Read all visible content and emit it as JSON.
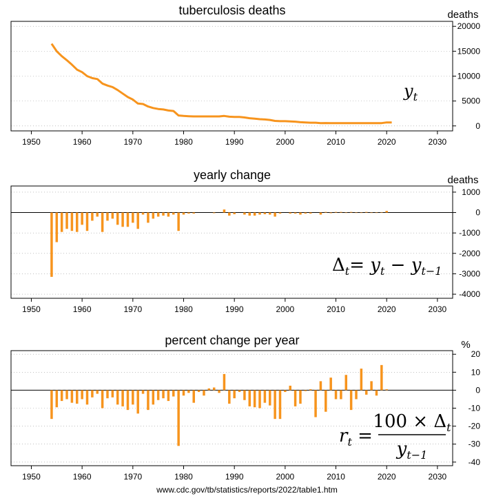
{
  "colors": {
    "series": "#F7941D",
    "frame": "#000000",
    "grid": "#999999"
  },
  "source": "www.cdc.gov/tb/statistics/reports/2022/table1.htm",
  "chart_data": [
    {
      "type": "line",
      "title": "tuberculosis deaths",
      "unit": "deaths",
      "formula": "y_t",
      "xlim": [
        1946,
        2033
      ],
      "ylim": [
        -1000,
        21000
      ],
      "xticks": [
        1950,
        1960,
        1970,
        1980,
        1990,
        2000,
        2010,
        2020,
        2030
      ],
      "yticks": [
        0,
        5000,
        10000,
        15000,
        20000
      ],
      "grid": true,
      "x": [
        1954,
        1955,
        1956,
        1957,
        1958,
        1959,
        1960,
        1961,
        1962,
        1963,
        1964,
        1965,
        1966,
        1967,
        1968,
        1969,
        1970,
        1971,
        1972,
        1973,
        1974,
        1975,
        1976,
        1977,
        1978,
        1979,
        1980,
        1981,
        1982,
        1983,
        1984,
        1985,
        1986,
        1987,
        1988,
        1989,
        1990,
        1991,
        1992,
        1993,
        1994,
        1995,
        1996,
        1997,
        1998,
        1999,
        2000,
        2001,
        2002,
        2003,
        2004,
        2005,
        2006,
        2007,
        2008,
        2009,
        2010,
        2011,
        2012,
        2013,
        2014,
        2015,
        2016,
        2017,
        2018,
        2019,
        2020,
        2021
      ],
      "values": [
        16500,
        15000,
        14000,
        13200,
        12300,
        11300,
        10800,
        10000,
        9600,
        9400,
        8500,
        8100,
        7800,
        7200,
        6500,
        5800,
        5300,
        4500,
        4400,
        3900,
        3600,
        3400,
        3300,
        3100,
        3000,
        2100,
        2000,
        1950,
        1900,
        1900,
        1900,
        1900,
        1900,
        1900,
        2000,
        1850,
        1800,
        1800,
        1700,
        1550,
        1450,
        1350,
        1300,
        1200,
        1000,
        950,
        950,
        900,
        850,
        750,
        700,
        650,
        650,
        550,
        580,
        550,
        550,
        550,
        550,
        550,
        550,
        550,
        550,
        550,
        550,
        570,
        700,
        700
      ]
    },
    {
      "type": "bar",
      "title": "yearly change",
      "unit": "deaths",
      "formula": "Δ_t = y_t − y_{t−1}",
      "xlim": [
        1946,
        2033
      ],
      "ylim": [
        -4200,
        1300
      ],
      "xticks": [
        1950,
        1960,
        1970,
        1980,
        1990,
        2000,
        2010,
        2020,
        2030
      ],
      "yticks": [
        1000,
        0,
        -1000,
        -2000,
        -3000,
        -4000
      ],
      "grid": true,
      "x": [
        1954,
        1955,
        1956,
        1957,
        1958,
        1959,
        1960,
        1961,
        1962,
        1963,
        1964,
        1965,
        1966,
        1967,
        1968,
        1969,
        1970,
        1971,
        1972,
        1973,
        1974,
        1975,
        1976,
        1977,
        1978,
        1979,
        1980,
        1981,
        1982,
        1983,
        1984,
        1985,
        1986,
        1987,
        1988,
        1989,
        1990,
        1991,
        1992,
        1993,
        1994,
        1995,
        1996,
        1997,
        1998,
        1999,
        2000,
        2001,
        2002,
        2003,
        2004,
        2005,
        2006,
        2007,
        2008,
        2009,
        2010,
        2011,
        2012,
        2013,
        2014,
        2015,
        2016,
        2017,
        2018,
        2019,
        2020,
        2021
      ],
      "values": [
        -3150,
        -1450,
        -950,
        -800,
        -900,
        -950,
        -600,
        -900,
        -400,
        -200,
        -950,
        -400,
        -300,
        -600,
        -700,
        -700,
        -500,
        -800,
        -100,
        -500,
        -300,
        -200,
        -150,
        -200,
        -100,
        -900,
        -100,
        -50,
        -50,
        0,
        0,
        0,
        -30,
        0,
        150,
        -150,
        -80,
        0,
        -100,
        -150,
        -150,
        -100,
        -80,
        -100,
        -200,
        -50,
        0,
        -50,
        -50,
        -100,
        -50,
        -50,
        0,
        -100,
        30,
        -30,
        30,
        30,
        -20,
        30,
        -20,
        -20,
        30,
        -20,
        -20,
        20,
        80,
        0
      ]
    },
    {
      "type": "bar",
      "title": "percent change per year",
      "unit": "%",
      "formula": "r_t = 100 × Δ_t / y_{t−1}",
      "xlim": [
        1946,
        2033
      ],
      "ylim": [
        -42,
        22
      ],
      "xticks": [
        1950,
        1960,
        1970,
        1980,
        1990,
        2000,
        2010,
        2020,
        2030
      ],
      "yticks": [
        20,
        10,
        0,
        -10,
        -20,
        -30,
        -40
      ],
      "grid": true,
      "x": [
        1954,
        1955,
        1956,
        1957,
        1958,
        1959,
        1960,
        1961,
        1962,
        1963,
        1964,
        1965,
        1966,
        1967,
        1968,
        1969,
        1970,
        1971,
        1972,
        1973,
        1974,
        1975,
        1976,
        1977,
        1978,
        1979,
        1980,
        1981,
        1982,
        1983,
        1984,
        1985,
        1986,
        1987,
        1988,
        1989,
        1990,
        1991,
        1992,
        1993,
        1994,
        1995,
        1996,
        1997,
        1998,
        1999,
        2000,
        2001,
        2002,
        2003,
        2004,
        2005,
        2006,
        2007,
        2008,
        2009,
        2010,
        2011,
        2012,
        2013,
        2014,
        2015,
        2016,
        2017,
        2018,
        2019,
        2020,
        2021
      ],
      "values": [
        -16,
        -9.5,
        -6,
        -5,
        -7,
        -7.5,
        -5,
        -8,
        -4,
        -2,
        -10,
        -4.5,
        -4,
        -8,
        -9,
        -11,
        -8,
        -13,
        -2,
        -11,
        -8,
        -5.5,
        -4.5,
        -6,
        -3.5,
        -31,
        -3,
        -1.5,
        -7,
        -1,
        -3,
        1,
        1.5,
        -1.5,
        9,
        -7.5,
        -4.5,
        -1,
        -5.5,
        -9,
        -9.5,
        -10,
        -7,
        -8.5,
        -16,
        -16,
        -1,
        2.5,
        -9,
        -7.5,
        -0.5,
        0.5,
        -15,
        5,
        -12,
        7,
        -5,
        -5,
        8.5,
        -11,
        -5,
        12,
        -2.5,
        5,
        -3,
        14,
        0.5,
        0
      ]
    }
  ]
}
